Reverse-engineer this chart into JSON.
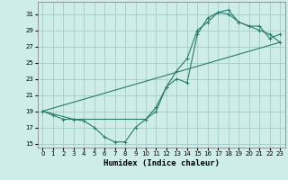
{
  "xlabel": "Humidex (Indice chaleur)",
  "background_color": "#ceecea",
  "grid_color": "#aacfcc",
  "line_color": "#2a7a6a",
  "xlim": [
    -0.5,
    23.5
  ],
  "ylim": [
    14.5,
    32.5
  ],
  "xticks": [
    0,
    1,
    2,
    3,
    4,
    5,
    6,
    7,
    8,
    9,
    10,
    11,
    12,
    13,
    14,
    15,
    16,
    17,
    18,
    19,
    20,
    21,
    22,
    23
  ],
  "yticks": [
    15,
    17,
    19,
    21,
    23,
    25,
    27,
    29,
    31
  ],
  "line1_x": [
    0,
    1,
    2,
    3,
    4,
    5,
    6,
    7,
    8,
    9,
    10,
    11,
    12,
    13,
    14,
    15,
    16,
    17,
    18,
    19,
    20,
    21,
    22,
    23
  ],
  "line1_y": [
    19,
    18.5,
    18,
    18,
    17.8,
    17,
    15.8,
    15.2,
    15.2,
    17,
    18,
    19,
    22,
    23,
    22.5,
    28.5,
    30.5,
    31.2,
    31,
    30,
    29.5,
    29,
    28.5,
    27.5
  ],
  "line2_x": [
    0,
    3,
    10,
    11,
    12,
    13,
    14,
    15,
    16,
    17,
    18,
    19,
    20,
    21,
    22,
    23
  ],
  "line2_y": [
    19,
    18,
    18,
    19.5,
    22,
    24,
    25.5,
    29,
    30,
    31.2,
    31.5,
    30,
    29.5,
    29.5,
    28,
    28.5
  ],
  "line3_x": [
    0,
    23
  ],
  "line3_y": [
    19,
    27.5
  ]
}
